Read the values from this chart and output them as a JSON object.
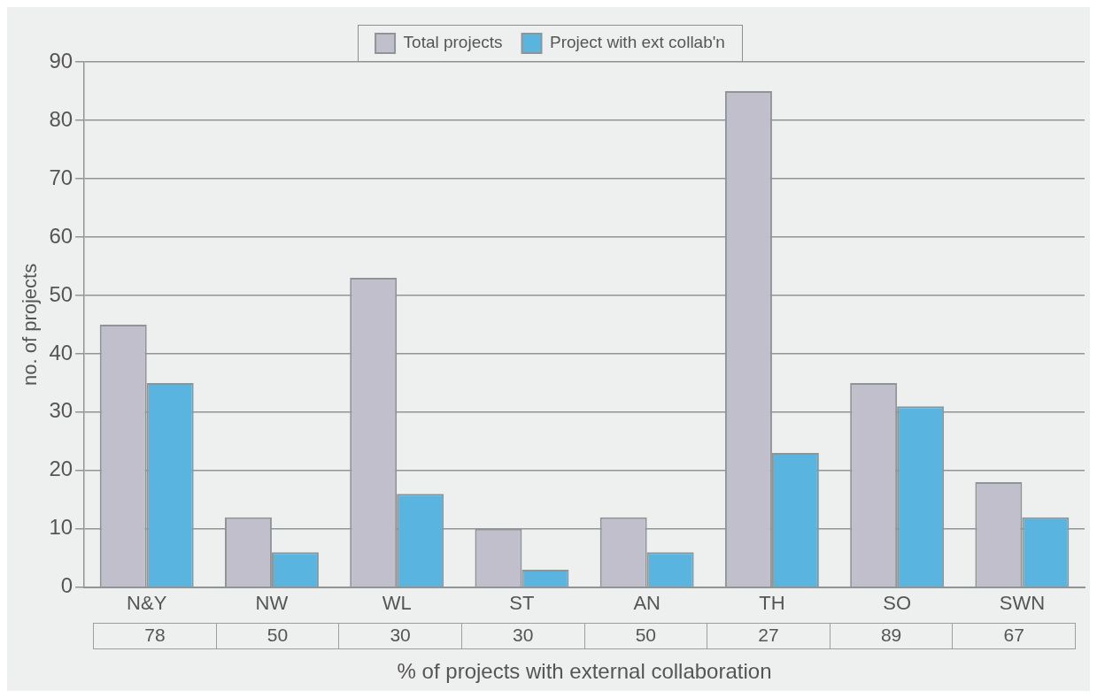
{
  "chart_data": {
    "type": "bar",
    "categories": [
      "N&Y",
      "NW",
      "WL",
      "ST",
      "AN",
      "TH",
      "SO",
      "SWN"
    ],
    "series": [
      {
        "name": "Total projects",
        "color": "#c0bfcb",
        "values": [
          45,
          12,
          53,
          10,
          12,
          85,
          35,
          18
        ]
      },
      {
        "name": "Project with ext collab'n",
        "color": "#5ab4e0",
        "values": [
          35,
          6,
          16,
          3,
          6,
          23,
          31,
          12
        ]
      }
    ],
    "ylabel": "no. of projects",
    "xlabel": "% of projects with external collaboration",
    "annotations": [
      "78",
      "50",
      "30",
      "30",
      "50",
      "27",
      "89",
      "67"
    ],
    "ylim": [
      0,
      90
    ],
    "yticks": [
      0,
      10,
      20,
      30,
      40,
      50,
      60,
      70,
      80,
      90
    ],
    "grid": "y",
    "legend": "top"
  }
}
